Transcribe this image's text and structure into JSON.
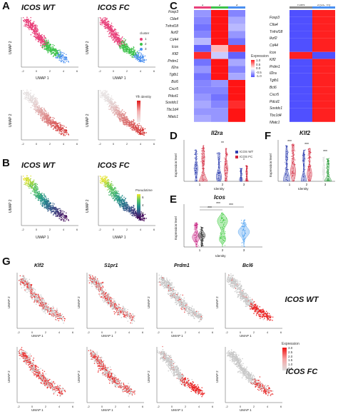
{
  "panel_labels": {
    "A": "A",
    "B": "B",
    "C": "C",
    "D": "D",
    "E": "E",
    "F": "F",
    "G": "G"
  },
  "panelA": {
    "left_title": "ICOS WT",
    "right_title": "ICOS FC",
    "umap1": "UMAP 1",
    "umap2": "UMAP 2",
    "legend_cluster_title": "cluster",
    "cluster_labels": [
      "1",
      "2",
      "3"
    ],
    "cluster_colors": [
      "#e8407a",
      "#3cc24a",
      "#4a8ff0"
    ],
    "legend_tfh_title": "Tfh identity",
    "x_ticks": [
      "-2",
      "0",
      "2",
      "4",
      "6"
    ]
  },
  "panelB": {
    "left_title": "ICOS WT",
    "right_title": "ICOS FC",
    "legend_title": "Pseudotime",
    "legend_ticks": [
      "6",
      "4",
      "2"
    ]
  },
  "panelC": {
    "group_labels": [
      "1",
      "2",
      "3"
    ],
    "group_colors": [
      "#e8407a",
      "#3cc24a",
      "#4a8ff0"
    ],
    "genes": [
      "Foxp3",
      "Ctla4",
      "Tnfrsf18",
      "Ikzf2",
      "Cd44",
      "Icos",
      "Klf2",
      "Prdm1",
      "Il2ra",
      "Tgfb1",
      "Bcl6",
      "Cxcr5",
      "Pdcd1",
      "Sostdc1",
      "Tbc1d4",
      "Nfatc1"
    ],
    "legend_title": "Expression",
    "legend_ticks": [
      "1.0",
      "0.5",
      "0.0",
      "-0.5",
      "-1.0"
    ],
    "right_cols": [
      "Tconv",
      "3 (GC Tfr)"
    ],
    "right_genes": [
      "Foxp3",
      "Ctla4",
      "Tnfrsf18",
      "Ikzf2",
      "Cd44",
      "Icos",
      "Klf2",
      "Prdm1",
      "Il2ra",
      "Tgfb1",
      "Bcl6",
      "Cxcr5",
      "Pdcd1",
      "Sostdc1",
      "Tbc1d4",
      "Nfatc1"
    ]
  },
  "panelD": {
    "title": "Il2ra",
    "ylabel": "Expression level",
    "xlabel": "Identity",
    "xcats": [
      "1",
      "2",
      "3"
    ],
    "sig": [
      "**",
      "*"
    ],
    "legend": [
      "ICOS WT",
      "ICOS FC"
    ]
  },
  "panelE": {
    "title": "Icos",
    "ylabel": "Expression level",
    "xlabel": "Identity",
    "xcats": [
      "1",
      "2",
      "3"
    ],
    "sig": [
      "***",
      "***",
      "***"
    ]
  },
  "panelF": {
    "title": "Klf2",
    "ylabel": "Expression level",
    "xlabel": "Identity",
    "xcats": [
      "1",
      "2",
      "3"
    ],
    "sig": [
      "***",
      "***",
      "***"
    ]
  },
  "panelG": {
    "genes": [
      "Klf2",
      "S1pr1",
      "Prdm1",
      "Bcl6"
    ],
    "row_labels": [
      "ICOS WT",
      "ICOS FC"
    ],
    "legend_title": "Expression",
    "legend_ticks": [
      "3.0",
      "2.5",
      "2.0",
      "1.5",
      "1.0",
      "0.5"
    ],
    "umap1": "UMAP 1",
    "umap2": "UMAP 2",
    "x_ticks": [
      "-2",
      "0",
      "2",
      "4",
      "6"
    ]
  },
  "colors": {
    "wt": "#2f3fb0",
    "fc": "#d2263c",
    "heat_high": "#ff2020",
    "heat_low": "#5050ff"
  }
}
